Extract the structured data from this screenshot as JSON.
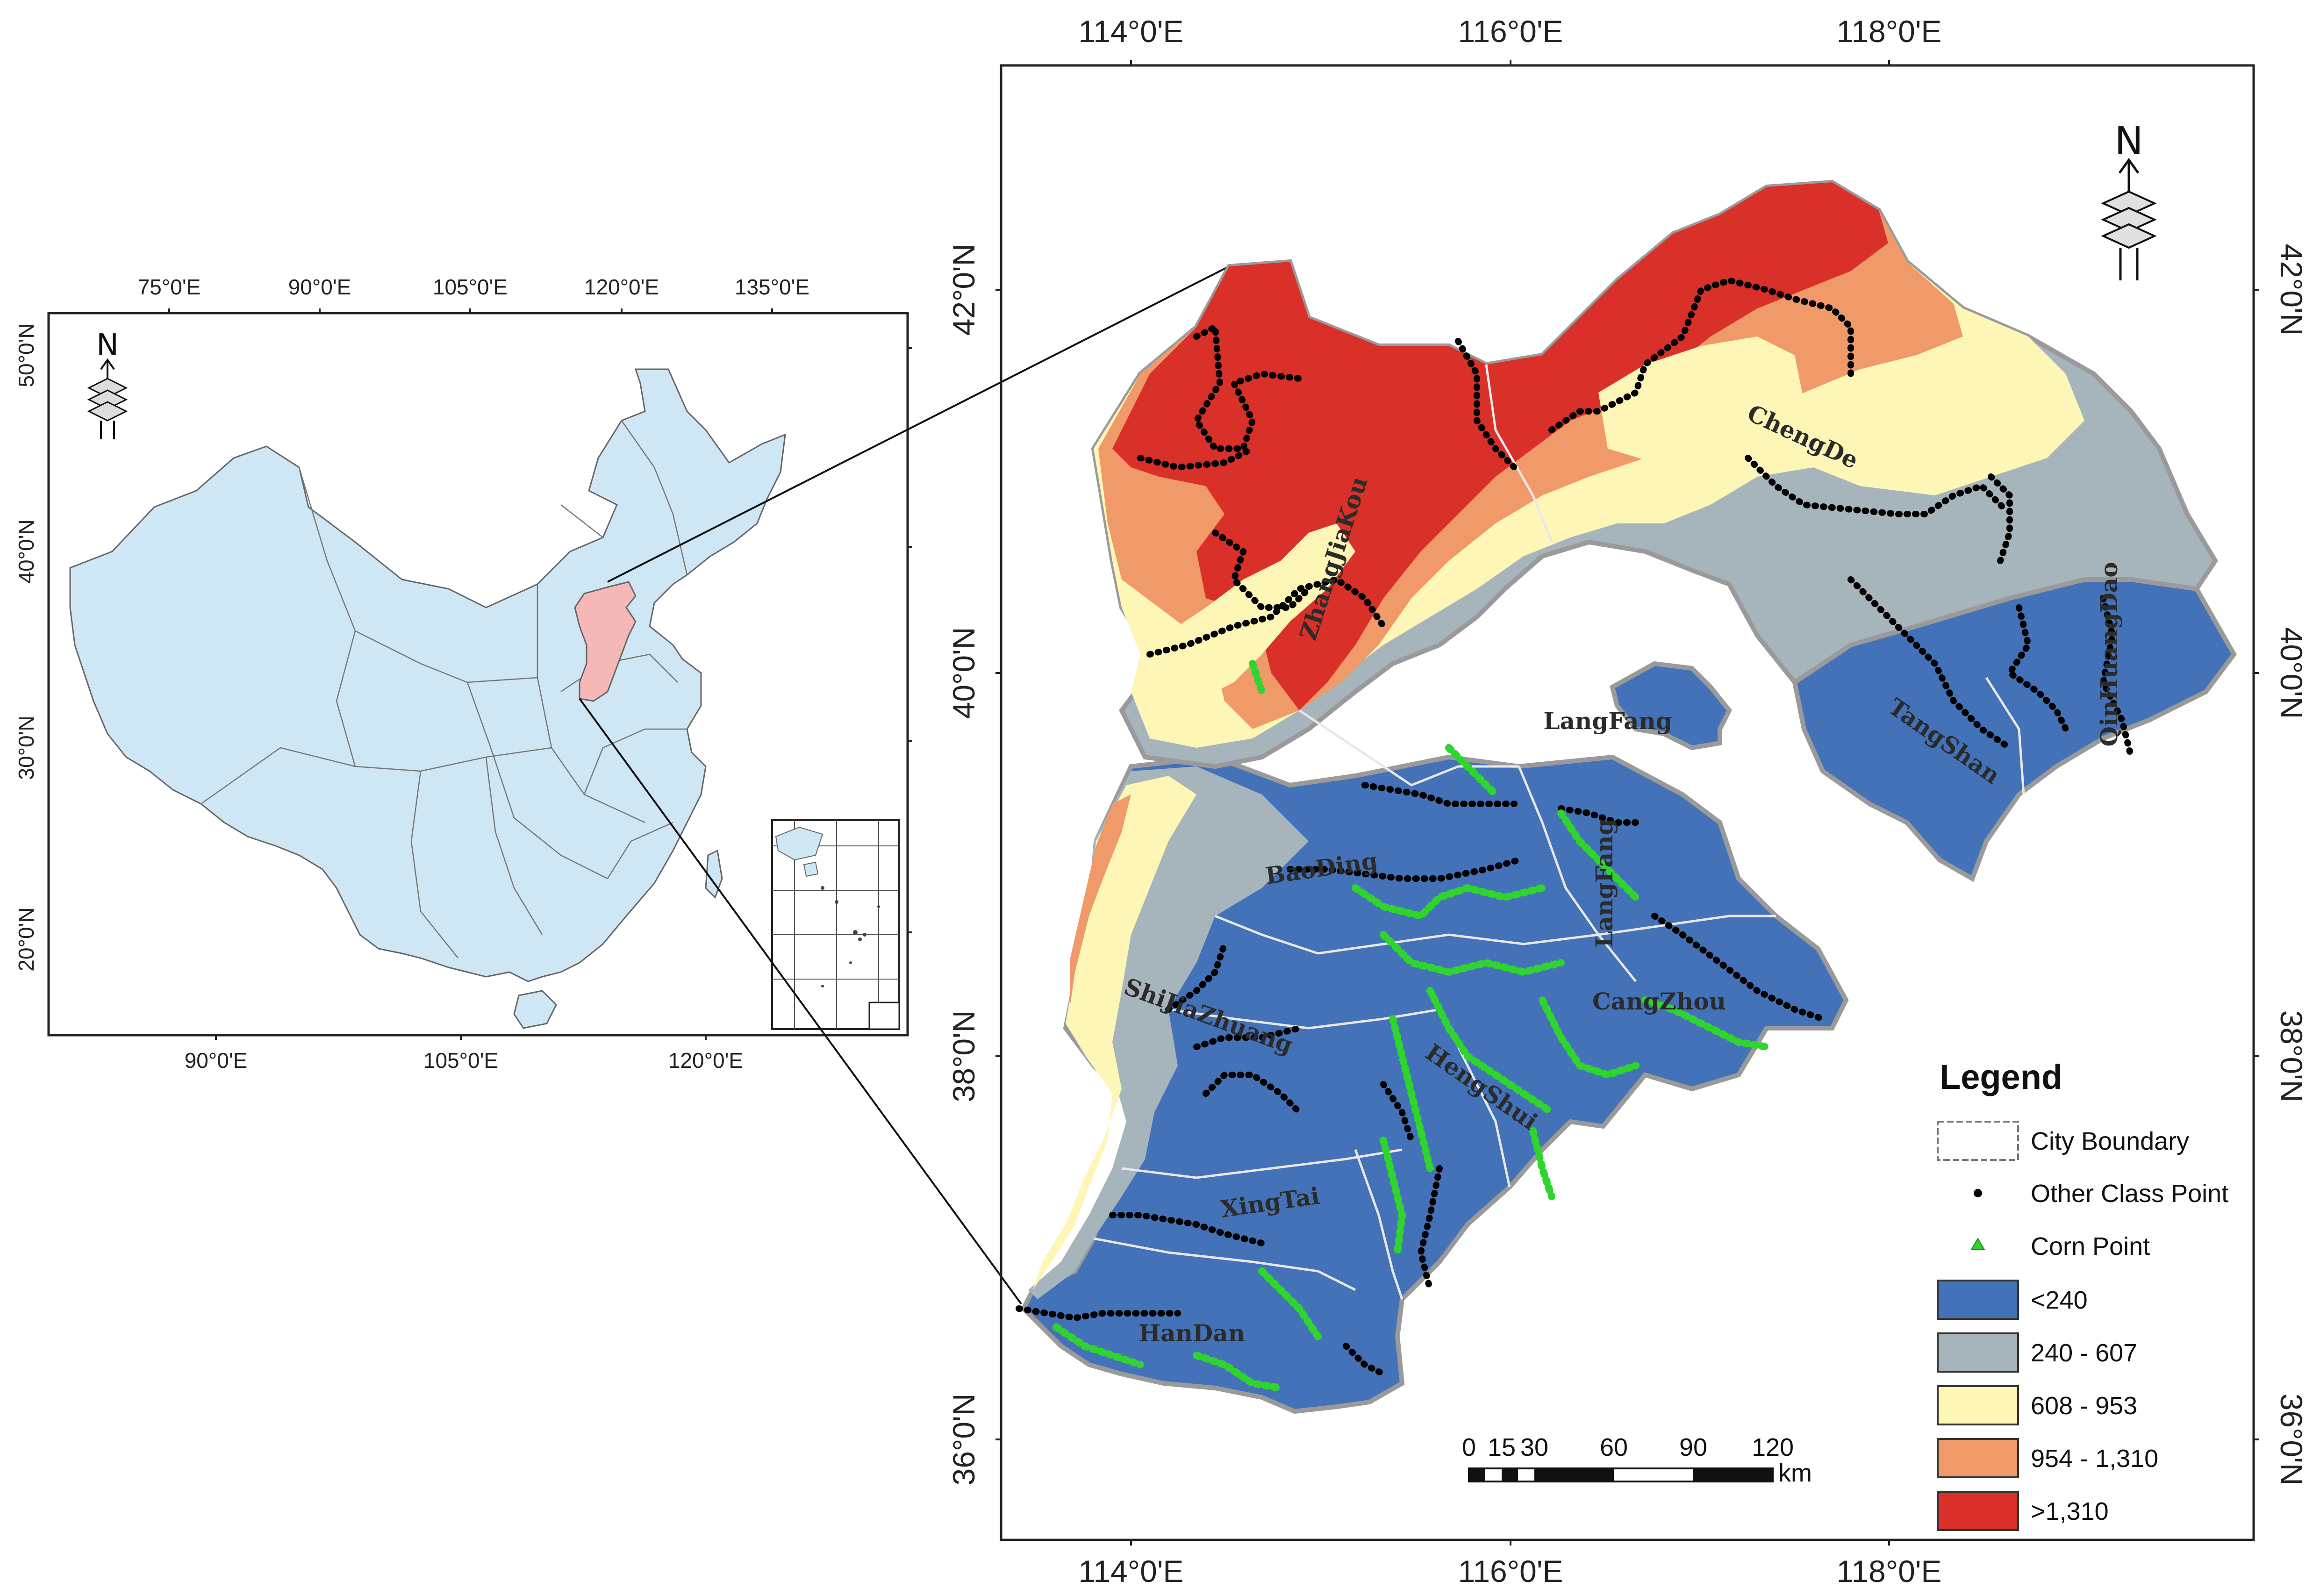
{
  "inset_map": {
    "top_lon_labels": [
      "75°0'E",
      "90°0'E",
      "105°0'E",
      "120°0'E",
      "135°0'E"
    ],
    "bottom_lon_labels": [
      "90°0'E",
      "105°0'E",
      "120°0'E"
    ],
    "lat_labels": [
      "50°0'N",
      "40°0'N",
      "30°0'N",
      "20°0'N"
    ],
    "north_label": "N",
    "country_color": "#cfe6f4",
    "highlight_region_color": "#f4b8b8"
  },
  "main_map": {
    "lon_labels": [
      "114°0'E",
      "116°0'E",
      "118°0'E"
    ],
    "lat_labels": [
      "42°0'N",
      "40°0'N",
      "38°0'N",
      "36°0'N"
    ],
    "north_label": "N",
    "cities": [
      "ZhangJiaKou",
      "ChengDe",
      "LangFang",
      "TangShan",
      "QinHuangDao",
      "BaoDing",
      "LangFang",
      "CangZhou",
      "ShiJiaZhuang",
      "HengShui",
      "XingTai",
      "HanDan"
    ],
    "scale_bar": {
      "ticks": [
        "0",
        "15",
        "30",
        "60",
        "90",
        "120"
      ],
      "unit": "km"
    }
  },
  "legend": {
    "title": "Legend",
    "items": [
      {
        "label": "City Boundary",
        "symbol": "boundary"
      },
      {
        "label": "Other Class Point",
        "symbol": "dot",
        "color": "#000000"
      },
      {
        "label": "Corn  Point",
        "symbol": "triangle",
        "color": "#2fd42f"
      },
      {
        "label": "<240",
        "symbol": "box",
        "color": "#4472b8"
      },
      {
        "label": "240 - 607",
        "symbol": "box",
        "color": "#a6b4bc"
      },
      {
        "label": "608 - 953",
        "symbol": "box",
        "color": "#fdf6b6"
      },
      {
        "label": "954 - 1,310",
        "symbol": "box",
        "color": "#f09a6a"
      },
      {
        "label": ">1,310",
        "symbol": "box",
        "color": "#d9302a"
      }
    ]
  }
}
